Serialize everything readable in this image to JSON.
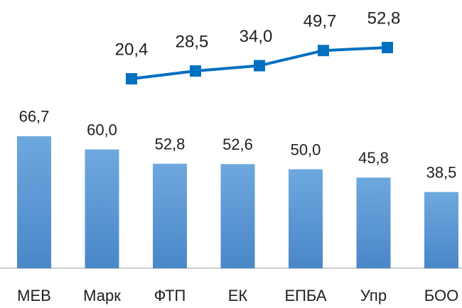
{
  "chart_data": [
    {
      "type": "bar",
      "categories": [
        "МЕВ",
        "Марк",
        "ФТП",
        "ЕК",
        "ЕПБА",
        "Упр",
        "БОО"
      ],
      "values": [
        66.7,
        60.0,
        52.8,
        52.6,
        50.0,
        45.8,
        38.5
      ],
      "value_labels": [
        "66,7",
        "60,0",
        "52,8",
        "52,6",
        "50,0",
        "45,8",
        "38,5"
      ],
      "color": "#5b9bd5"
    },
    {
      "type": "line",
      "values": [
        20.4,
        28.5,
        34.0,
        49.7,
        52.8
      ],
      "value_labels": [
        "20,4",
        "28,5",
        "34,0",
        "49,7",
        "52,8"
      ],
      "color": "#0070c0"
    }
  ]
}
